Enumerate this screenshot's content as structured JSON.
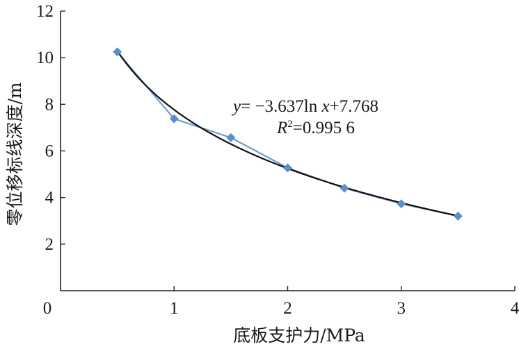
{
  "chart_data": {
    "type": "scatter",
    "x": [
      0.5,
      1.0,
      1.5,
      2.0,
      2.5,
      3.0,
      3.5
    ],
    "values": [
      10.25,
      7.38,
      6.57,
      5.27,
      4.4,
      3.73,
      3.2
    ],
    "xlim": [
      0,
      4
    ],
    "ylim": [
      0,
      12
    ],
    "xticks": [
      "0",
      "1",
      "2",
      "3",
      "4"
    ],
    "yticks": [
      "0",
      "2",
      "4",
      "6",
      "8",
      "10",
      "12"
    ],
    "xlabel": "底板支护力/MPa",
    "ylabel": "零位移标线深度/m",
    "fit": {
      "type": "logarithmic",
      "a": -3.637,
      "b": 7.768,
      "equation_parts": {
        "y": "y",
        "eq_rest": "= −3.637ln ",
        "x": "x",
        "tail": "+7.768",
        "r": "R",
        "sup": "2",
        "r_rest": "=0.995 6"
      }
    },
    "colors": {
      "series": "#6a9fd3",
      "marker": "#5b8fc9",
      "fit": "#111111",
      "axis": "#222222"
    }
  }
}
